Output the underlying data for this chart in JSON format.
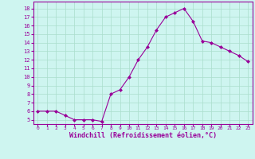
{
  "x": [
    0,
    1,
    2,
    3,
    4,
    5,
    6,
    7,
    8,
    9,
    10,
    11,
    12,
    13,
    14,
    15,
    16,
    17,
    18,
    19,
    20,
    21,
    22,
    23
  ],
  "y": [
    6,
    6,
    6,
    5.5,
    5,
    5,
    5,
    4.8,
    8,
    8.5,
    10,
    12,
    13.5,
    15.5,
    17,
    17.5,
    18,
    16.5,
    14.2,
    14,
    13.5,
    13,
    12.5,
    11.8
  ],
  "line_color": "#990099",
  "marker": "D",
  "marker_size": 2,
  "bg_color": "#cef5f0",
  "grid_color": "#aaddcc",
  "xlabel": "Windchill (Refroidissement éolien,°C)",
  "xlabel_color": "#990099",
  "tick_color": "#990099",
  "xlim": [
    -0.5,
    23.5
  ],
  "ylim": [
    4.5,
    18.8
  ],
  "yticks": [
    5,
    6,
    7,
    8,
    9,
    10,
    11,
    12,
    13,
    14,
    15,
    16,
    17,
    18
  ],
  "xticks": [
    0,
    1,
    2,
    3,
    4,
    5,
    6,
    7,
    8,
    9,
    10,
    11,
    12,
    13,
    14,
    15,
    16,
    17,
    18,
    19,
    20,
    21,
    22,
    23
  ]
}
